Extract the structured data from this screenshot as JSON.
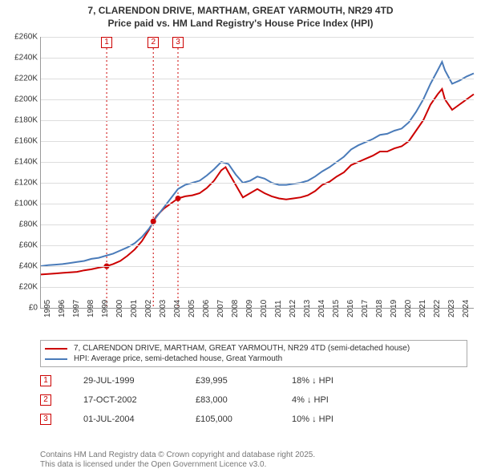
{
  "title": {
    "line1": "7, CLARENDON DRIVE, MARTHAM, GREAT YARMOUTH, NR29 4TD",
    "line2": "Price paid vs. HM Land Registry's House Price Index (HPI)",
    "fontsize": 12
  },
  "chart": {
    "type": "line",
    "x_start_year": 1995,
    "x_end_year": 2025,
    "xtick_years": [
      1995,
      1996,
      1997,
      1998,
      1999,
      2000,
      2001,
      2002,
      2003,
      2004,
      2005,
      2006,
      2007,
      2008,
      2009,
      2010,
      2011,
      2012,
      2013,
      2014,
      2015,
      2016,
      2017,
      2018,
      2019,
      2020,
      2021,
      2022,
      2023,
      2024
    ],
    "ylim": [
      0,
      260000
    ],
    "ytick_step": 20000,
    "ytick_labels": [
      "£0",
      "£20K",
      "£40K",
      "£60K",
      "£80K",
      "£100K",
      "£120K",
      "£140K",
      "£160K",
      "£180K",
      "£200K",
      "£220K",
      "£240K",
      "£260K"
    ],
    "grid_color": "#dddddd",
    "background_color": "#ffffff",
    "series": [
      {
        "name": "price_paid",
        "label": "7, CLARENDON DRIVE, MARTHAM, GREAT YARMOUTH, NR29 4TD (semi-detached house)",
        "color": "#cc0000",
        "values": [
          [
            1995.0,
            32000
          ],
          [
            1995.5,
            32500
          ],
          [
            1996.0,
            33000
          ],
          [
            1996.5,
            33500
          ],
          [
            1997.0,
            34000
          ],
          [
            1997.5,
            34500
          ],
          [
            1998.0,
            36000
          ],
          [
            1998.5,
            37000
          ],
          [
            1999.0,
            38500
          ],
          [
            1999.56,
            39995
          ],
          [
            2000.0,
            42000
          ],
          [
            2000.5,
            45000
          ],
          [
            2001.0,
            50000
          ],
          [
            2001.5,
            56000
          ],
          [
            2002.0,
            64000
          ],
          [
            2002.5,
            75000
          ],
          [
            2002.79,
            83000
          ],
          [
            2003.0,
            88000
          ],
          [
            2003.5,
            95000
          ],
          [
            2004.0,
            100000
          ],
          [
            2004.5,
            105000
          ],
          [
            2005.0,
            107000
          ],
          [
            2005.5,
            108000
          ],
          [
            2006.0,
            110000
          ],
          [
            2006.5,
            115000
          ],
          [
            2007.0,
            122000
          ],
          [
            2007.5,
            132000
          ],
          [
            2007.8,
            135000
          ],
          [
            2008.0,
            130000
          ],
          [
            2008.5,
            118000
          ],
          [
            2009.0,
            106000
          ],
          [
            2009.5,
            110000
          ],
          [
            2010.0,
            114000
          ],
          [
            2010.5,
            110000
          ],
          [
            2011.0,
            107000
          ],
          [
            2011.5,
            105000
          ],
          [
            2012.0,
            104000
          ],
          [
            2012.5,
            105000
          ],
          [
            2013.0,
            106000
          ],
          [
            2013.5,
            108000
          ],
          [
            2014.0,
            112000
          ],
          [
            2014.5,
            118000
          ],
          [
            2015.0,
            121000
          ],
          [
            2015.5,
            126000
          ],
          [
            2016.0,
            130000
          ],
          [
            2016.5,
            137000
          ],
          [
            2017.0,
            140000
          ],
          [
            2017.5,
            143000
          ],
          [
            2018.0,
            146000
          ],
          [
            2018.5,
            150000
          ],
          [
            2019.0,
            150000
          ],
          [
            2019.5,
            153000
          ],
          [
            2020.0,
            155000
          ],
          [
            2020.5,
            160000
          ],
          [
            2021.0,
            170000
          ],
          [
            2021.5,
            180000
          ],
          [
            2022.0,
            195000
          ],
          [
            2022.5,
            205000
          ],
          [
            2022.8,
            210000
          ],
          [
            2023.0,
            200000
          ],
          [
            2023.5,
            190000
          ],
          [
            2024.0,
            195000
          ],
          [
            2024.5,
            200000
          ],
          [
            2025.0,
            205000
          ]
        ]
      },
      {
        "name": "hpi",
        "label": "HPI: Average price, semi-detached house, Great Yarmouth",
        "color": "#4a7bb9",
        "values": [
          [
            1995.0,
            40000
          ],
          [
            1995.5,
            41000
          ],
          [
            1996.0,
            41500
          ],
          [
            1996.5,
            42000
          ],
          [
            1997.0,
            43000
          ],
          [
            1997.5,
            44000
          ],
          [
            1998.0,
            45000
          ],
          [
            1998.5,
            47000
          ],
          [
            1999.0,
            48000
          ],
          [
            1999.5,
            50000
          ],
          [
            2000.0,
            52000
          ],
          [
            2000.5,
            55000
          ],
          [
            2001.0,
            58000
          ],
          [
            2001.5,
            62000
          ],
          [
            2002.0,
            68000
          ],
          [
            2002.5,
            76000
          ],
          [
            2003.0,
            87000
          ],
          [
            2003.5,
            96000
          ],
          [
            2004.0,
            105000
          ],
          [
            2004.5,
            114000
          ],
          [
            2005.0,
            118000
          ],
          [
            2005.5,
            120000
          ],
          [
            2006.0,
            122000
          ],
          [
            2006.5,
            127000
          ],
          [
            2007.0,
            133000
          ],
          [
            2007.5,
            140000
          ],
          [
            2008.0,
            138000
          ],
          [
            2008.5,
            128000
          ],
          [
            2009.0,
            120000
          ],
          [
            2009.5,
            122000
          ],
          [
            2010.0,
            126000
          ],
          [
            2010.5,
            124000
          ],
          [
            2011.0,
            120000
          ],
          [
            2011.5,
            118000
          ],
          [
            2012.0,
            118000
          ],
          [
            2012.5,
            119000
          ],
          [
            2013.0,
            120000
          ],
          [
            2013.5,
            122000
          ],
          [
            2014.0,
            126000
          ],
          [
            2014.5,
            131000
          ],
          [
            2015.0,
            135000
          ],
          [
            2015.5,
            140000
          ],
          [
            2016.0,
            145000
          ],
          [
            2016.5,
            152000
          ],
          [
            2017.0,
            156000
          ],
          [
            2017.5,
            159000
          ],
          [
            2018.0,
            162000
          ],
          [
            2018.5,
            166000
          ],
          [
            2019.0,
            167000
          ],
          [
            2019.5,
            170000
          ],
          [
            2020.0,
            172000
          ],
          [
            2020.5,
            178000
          ],
          [
            2021.0,
            188000
          ],
          [
            2021.5,
            200000
          ],
          [
            2022.0,
            215000
          ],
          [
            2022.5,
            228000
          ],
          [
            2022.8,
            236000
          ],
          [
            2023.0,
            228000
          ],
          [
            2023.5,
            215000
          ],
          [
            2024.0,
            218000
          ],
          [
            2024.5,
            222000
          ],
          [
            2025.0,
            225000
          ]
        ]
      }
    ],
    "markers": [
      {
        "num": "1",
        "year": 1999.56,
        "color": "#cc0000"
      },
      {
        "num": "2",
        "year": 2002.79,
        "color": "#cc0000"
      },
      {
        "num": "3",
        "year": 2004.5,
        "color": "#cc0000"
      }
    ],
    "sale_points": [
      {
        "year": 1999.56,
        "value": 39995
      },
      {
        "year": 2002.79,
        "value": 83000
      },
      {
        "year": 2004.5,
        "value": 105000
      }
    ]
  },
  "sales": [
    {
      "num": "1",
      "date": "29-JUL-1999",
      "price": "£39,995",
      "pct": "18% ↓ HPI",
      "color": "#cc0000"
    },
    {
      "num": "2",
      "date": "17-OCT-2002",
      "price": "£83,000",
      "pct": "4% ↓ HPI",
      "color": "#cc0000"
    },
    {
      "num": "3",
      "date": "01-JUL-2004",
      "price": "£105,000",
      "pct": "10% ↓ HPI",
      "color": "#cc0000"
    }
  ],
  "footer": {
    "line1": "Contains HM Land Registry data © Crown copyright and database right 2025.",
    "line2": "This data is licensed under the Open Government Licence v3.0."
  }
}
